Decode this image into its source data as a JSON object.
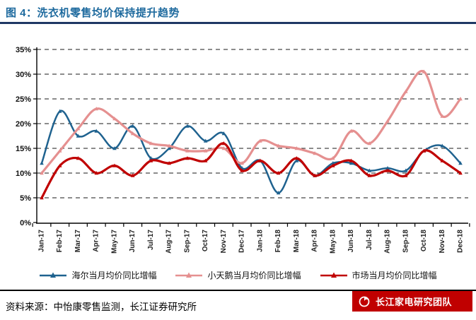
{
  "header": {
    "title": "图 4：洗衣机零售均价保持提升趋势"
  },
  "chart_data": {
    "type": "line",
    "categories": [
      "Jan-17",
      "Feb-17",
      "Mar-17",
      "Apr-17",
      "May-17",
      "Jun-17",
      "Jul-17",
      "Aug-17",
      "Sep-17",
      "Oct-17",
      "Nov-17",
      "Dec-17",
      "Jan-18",
      "Feb-18",
      "Mar-18",
      "Apr-18",
      "May-18",
      "Jun-18",
      "Jul-18",
      "Aug-18",
      "Sep-18",
      "Oct-18",
      "Nov-18",
      "Dec-18"
    ],
    "series": [
      {
        "name": "海尔当月均价同比增幅",
        "color": "#1F628F",
        "line_width": 2.5,
        "values": [
          12,
          22.5,
          17.5,
          18.5,
          15,
          19.5,
          13,
          15,
          19.5,
          16.5,
          18,
          11,
          12.5,
          6,
          12.5,
          9.5,
          12,
          12,
          10.5,
          11,
          10.5,
          14.5,
          15.5,
          12
        ]
      },
      {
        "name": "小天鹅当月均价同比增幅",
        "color": "#E59090",
        "line_width": 3.2,
        "values": [
          10,
          14.5,
          19,
          23,
          21,
          18,
          16,
          15.5,
          14.5,
          14.5,
          15,
          12,
          16.5,
          15.5,
          15,
          14,
          13,
          18.5,
          16,
          20.5,
          26.5,
          30.5,
          21.5,
          25
        ]
      },
      {
        "name": "市场当月均价同比增幅",
        "color": "#C00000",
        "line_width": 3.2,
        "values": [
          5,
          11.5,
          13,
          10,
          11.5,
          9.5,
          12.5,
          12,
          13,
          12.5,
          16,
          10.5,
          12.5,
          10,
          13,
          9.5,
          11.5,
          12.5,
          9.5,
          10.5,
          9.5,
          14.5,
          12.5,
          10
        ]
      }
    ],
    "title": "",
    "xlabel": "",
    "ylabel": "",
    "ylim": [
      0,
      35
    ],
    "ytick_step": 5,
    "ytick_labels": [
      "0%",
      "5%",
      "10%",
      "15%",
      "20%",
      "25%",
      "30%",
      "35%"
    ],
    "grid": "horizontal-dashed",
    "legend_position": "bottom",
    "marker": "triangle"
  },
  "footer": {
    "source_label": "资料来源：中怡康零售监测，长江证券研究所",
    "badge_text": "长江家电研究团队"
  }
}
